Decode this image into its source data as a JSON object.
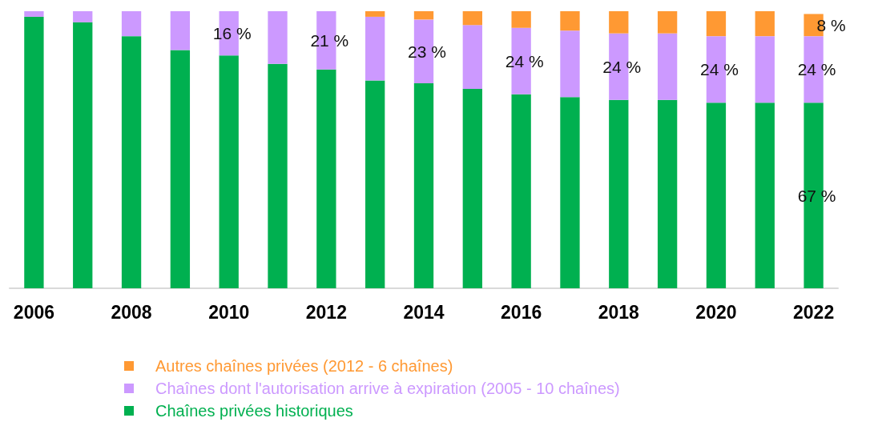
{
  "chart_data": {
    "type": "bar",
    "stacked": true,
    "tick_labels": "x",
    "legend": "bottom",
    "ylim": [
      0,
      100
    ],
    "categories": [
      "2006",
      null,
      "2008",
      null,
      "2010",
      null,
      "2012",
      null,
      "2014",
      null,
      "2016",
      null,
      "2018",
      null,
      "2020",
      null,
      "2022"
    ],
    "series": [
      {
        "name": "Chaînes privées historiques",
        "color": "#00b050",
        "values": [
          98,
          96,
          91,
          86,
          84,
          81,
          79,
          75,
          74,
          72,
          70,
          69,
          68,
          68,
          67,
          67,
          67
        ],
        "value_labels": [
          null,
          null,
          null,
          null,
          null,
          null,
          null,
          null,
          null,
          null,
          null,
          null,
          null,
          null,
          null,
          null,
          "67 %"
        ]
      },
      {
        "name": "Chaînes dont l'autorisation arrive à expiration (2005 - 10 chaînes)",
        "color": "#cc99ff",
        "values": [
          2,
          4,
          9,
          14,
          16,
          19,
          21,
          23,
          23,
          23,
          24,
          24,
          24,
          24,
          24,
          24,
          24
        ],
        "value_labels": [
          null,
          null,
          null,
          null,
          "16 %",
          null,
          "21 %",
          null,
          "23 %",
          null,
          "24 %",
          null,
          "24 %",
          null,
          "24 %",
          null,
          "24 %"
        ]
      },
      {
        "name": "Autres chaînes privées (2012 - 6 chaînes)",
        "color": "#ff9933",
        "values": [
          null,
          null,
          null,
          null,
          null,
          null,
          null,
          2,
          3,
          5,
          6,
          7,
          8,
          8,
          9,
          9,
          8
        ],
        "value_labels": [
          null,
          null,
          null,
          null,
          null,
          null,
          null,
          null,
          null,
          null,
          null,
          null,
          null,
          null,
          null,
          null,
          "8 %"
        ]
      }
    ]
  }
}
